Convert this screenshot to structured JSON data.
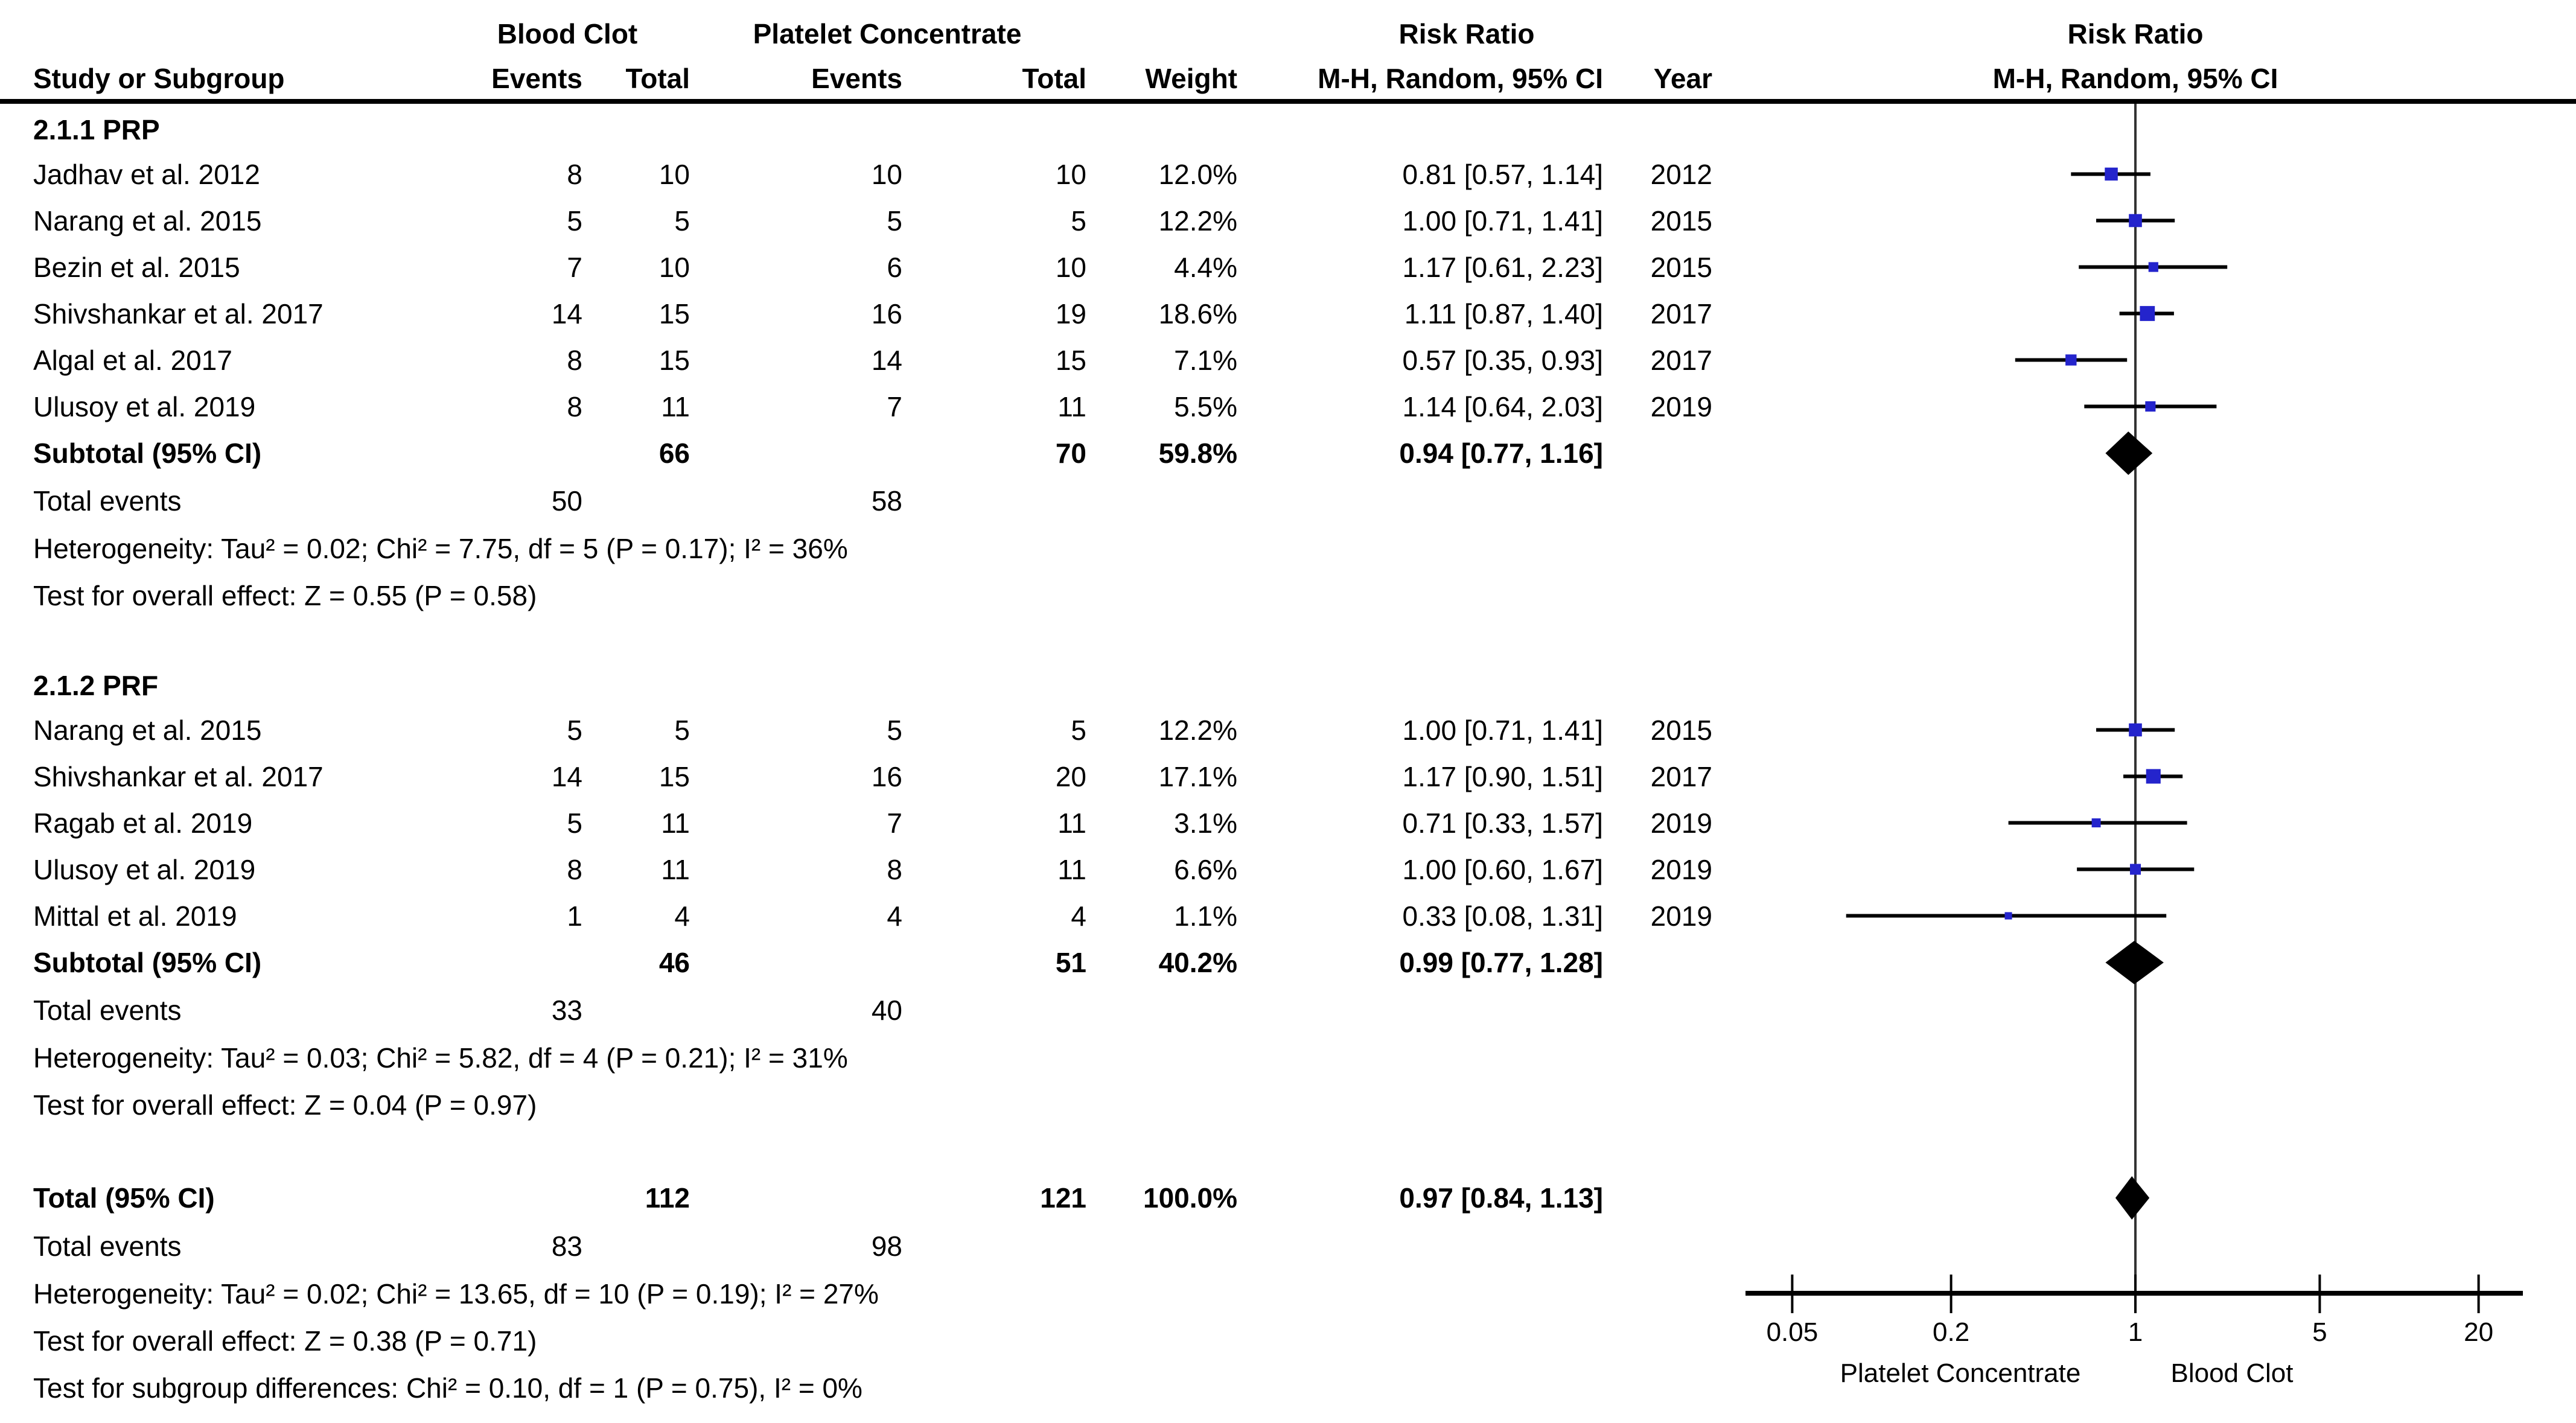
{
  "header": {
    "group1": "Blood Clot",
    "group2": "Platelet Concentrate",
    "risk_ratio": "Risk Ratio",
    "study": "Study or Subgroup",
    "events": "Events",
    "total": "Total",
    "weight": "Weight",
    "ci": "M-H, Random, 95% CI",
    "year": "Year"
  },
  "axis": {
    "ticks": [
      {
        "v": 0.05,
        "label": "0.05"
      },
      {
        "v": 0.2,
        "label": "0.2"
      },
      {
        "v": 1,
        "label": "1"
      },
      {
        "v": 5,
        "label": "5"
      },
      {
        "v": 20,
        "label": "20"
      }
    ],
    "favours_left": "Platelet Concentrate",
    "favours_right": "Blood Clot"
  },
  "colors": {
    "marker_blue": "#2424CC",
    "line_black": "#000000",
    "center_line": "#333333"
  },
  "rows": [
    {
      "type": "section",
      "label": "2.1.1 PRP"
    },
    {
      "type": "study",
      "study": "Jadhav et al. 2012",
      "e1": "8",
      "t1": "10",
      "e2": "10",
      "t2": "10",
      "weight": "12.0%",
      "ci": "0.81 [0.57, 1.14]",
      "year": "2012",
      "rr": 0.81,
      "lo": 0.57,
      "hi": 1.14,
      "w": 12.0
    },
    {
      "type": "study",
      "study": "Narang et al. 2015",
      "e1": "5",
      "t1": "5",
      "e2": "5",
      "t2": "5",
      "weight": "12.2%",
      "ci": "1.00 [0.71, 1.41]",
      "year": "2015",
      "rr": 1.0,
      "lo": 0.71,
      "hi": 1.41,
      "w": 12.2
    },
    {
      "type": "study",
      "study": "Bezin et al. 2015",
      "e1": "7",
      "t1": "10",
      "e2": "6",
      "t2": "10",
      "weight": "4.4%",
      "ci": "1.17 [0.61, 2.23]",
      "year": "2015",
      "rr": 1.17,
      "lo": 0.61,
      "hi": 2.23,
      "w": 4.4
    },
    {
      "type": "study",
      "study": "Shivshankar et al. 2017",
      "e1": "14",
      "t1": "15",
      "e2": "16",
      "t2": "19",
      "weight": "18.6%",
      "ci": "1.11 [0.87, 1.40]",
      "year": "2017",
      "rr": 1.11,
      "lo": 0.87,
      "hi": 1.4,
      "w": 18.6
    },
    {
      "type": "study",
      "study": "Algal et al. 2017",
      "e1": "8",
      "t1": "15",
      "e2": "14",
      "t2": "15",
      "weight": "7.1%",
      "ci": "0.57 [0.35, 0.93]",
      "year": "2017",
      "rr": 0.57,
      "lo": 0.35,
      "hi": 0.93,
      "w": 7.1
    },
    {
      "type": "study",
      "study": "Ulusoy et al. 2019",
      "e1": "8",
      "t1": "11",
      "e2": "7",
      "t2": "11",
      "weight": "5.5%",
      "ci": "1.14 [0.64, 2.03]",
      "year": "2019",
      "rr": 1.14,
      "lo": 0.64,
      "hi": 2.03,
      "w": 5.5
    },
    {
      "type": "subtotal",
      "label": "Subtotal (95% CI)",
      "t1": "66",
      "t2": "70",
      "weight": "59.8%",
      "ci": "0.94 [0.77, 1.16]",
      "rr": 0.94,
      "lo": 0.77,
      "hi": 1.16
    },
    {
      "type": "events",
      "label": "Total events",
      "e1": "50",
      "e2": "58"
    },
    {
      "type": "note",
      "label": "Heterogeneity: Tau² = 0.02; Chi² = 7.75, df = 5 (P = 0.17); I² = 36%"
    },
    {
      "type": "note",
      "label": "Test for overall effect: Z = 0.55 (P = 0.58)"
    },
    {
      "type": "gap"
    },
    {
      "type": "section",
      "label": "2.1.2 PRF"
    },
    {
      "type": "study",
      "study": "Narang et al. 2015",
      "e1": "5",
      "t1": "5",
      "e2": "5",
      "t2": "5",
      "weight": "12.2%",
      "ci": "1.00 [0.71, 1.41]",
      "year": "2015",
      "rr": 1.0,
      "lo": 0.71,
      "hi": 1.41,
      "w": 12.2
    },
    {
      "type": "study",
      "study": "Shivshankar et al. 2017",
      "e1": "14",
      "t1": "15",
      "e2": "16",
      "t2": "20",
      "weight": "17.1%",
      "ci": "1.17 [0.90, 1.51]",
      "year": "2017",
      "rr": 1.17,
      "lo": 0.9,
      "hi": 1.51,
      "w": 17.1
    },
    {
      "type": "study",
      "study": "Ragab et al. 2019",
      "e1": "5",
      "t1": "11",
      "e2": "7",
      "t2": "11",
      "weight": "3.1%",
      "ci": "0.71 [0.33, 1.57]",
      "year": "2019",
      "rr": 0.71,
      "lo": 0.33,
      "hi": 1.57,
      "w": 3.1
    },
    {
      "type": "study",
      "study": "Ulusoy et al. 2019",
      "e1": "8",
      "t1": "11",
      "e2": "8",
      "t2": "11",
      "weight": "6.6%",
      "ci": "1.00 [0.60, 1.67]",
      "year": "2019",
      "rr": 1.0,
      "lo": 0.6,
      "hi": 1.67,
      "w": 6.6
    },
    {
      "type": "study",
      "study": "Mittal et al. 2019",
      "e1": "1",
      "t1": "4",
      "e2": "4",
      "t2": "4",
      "weight": "1.1%",
      "ci": "0.33 [0.08, 1.31]",
      "year": "2019",
      "rr": 0.33,
      "lo": 0.08,
      "hi": 1.31,
      "w": 1.1
    },
    {
      "type": "subtotal",
      "label": "Subtotal (95% CI)",
      "t1": "46",
      "t2": "51",
      "weight": "40.2%",
      "ci": "0.99 [0.77, 1.28]",
      "rr": 0.99,
      "lo": 0.77,
      "hi": 1.28
    },
    {
      "type": "events",
      "label": "Total events",
      "e1": "33",
      "e2": "40"
    },
    {
      "type": "note",
      "label": "Heterogeneity: Tau² = 0.03; Chi² = 5.82, df = 4 (P = 0.21); I² = 31%"
    },
    {
      "type": "note",
      "label": "Test for overall effect: Z = 0.04 (P = 0.97)"
    },
    {
      "type": "gap"
    },
    {
      "type": "total",
      "label": "Total (95% CI)",
      "t1": "112",
      "t2": "121",
      "weight": "100.0%",
      "ci": "0.97 [0.84, 1.13]",
      "rr": 0.97,
      "lo": 0.84,
      "hi": 1.13
    },
    {
      "type": "events",
      "label": "Total events",
      "e1": "83",
      "e2": "98"
    },
    {
      "type": "note",
      "label": "Heterogeneity: Tau² = 0.02; Chi² = 13.65, df = 10 (P = 0.19); I² = 27%"
    },
    {
      "type": "note",
      "label": "Test for overall effect: Z = 0.38 (P = 0.71)"
    },
    {
      "type": "note",
      "label": "Test for subgroup differences: Chi² = 0.10, df = 1 (P = 0.75), I² = 0%"
    }
  ],
  "chart_data": {
    "type": "forest",
    "effect_measure": "Risk Ratio",
    "method": "M-H, Random, 95% CI",
    "group_labels": [
      "Blood Clot",
      "Platelet Concentrate"
    ],
    "x_scale": "log",
    "x_ticks": [
      0.05,
      0.2,
      1,
      5,
      20
    ],
    "xlim": [
      0.05,
      20
    ],
    "favours_left": "Platelet Concentrate",
    "favours_right": "Blood Clot",
    "subgroups": [
      {
        "name": "2.1.1 PRP",
        "studies": [
          {
            "study": "Jadhav et al. 2012",
            "events_blood_clot": 8,
            "total_blood_clot": 10,
            "events_platelet": 10,
            "total_platelet": 10,
            "weight_pct": 12.0,
            "rr": 0.81,
            "ci_low": 0.57,
            "ci_high": 1.14,
            "year": 2012
          },
          {
            "study": "Narang et al. 2015",
            "events_blood_clot": 5,
            "total_blood_clot": 5,
            "events_platelet": 5,
            "total_platelet": 5,
            "weight_pct": 12.2,
            "rr": 1.0,
            "ci_low": 0.71,
            "ci_high": 1.41,
            "year": 2015
          },
          {
            "study": "Bezin et al. 2015",
            "events_blood_clot": 7,
            "total_blood_clot": 10,
            "events_platelet": 6,
            "total_platelet": 10,
            "weight_pct": 4.4,
            "rr": 1.17,
            "ci_low": 0.61,
            "ci_high": 2.23,
            "year": 2015
          },
          {
            "study": "Shivshankar et al. 2017",
            "events_blood_clot": 14,
            "total_blood_clot": 15,
            "events_platelet": 16,
            "total_platelet": 19,
            "weight_pct": 18.6,
            "rr": 1.11,
            "ci_low": 0.87,
            "ci_high": 1.4,
            "year": 2017
          },
          {
            "study": "Algal et al. 2017",
            "events_blood_clot": 8,
            "total_blood_clot": 15,
            "events_platelet": 14,
            "total_platelet": 15,
            "weight_pct": 7.1,
            "rr": 0.57,
            "ci_low": 0.35,
            "ci_high": 0.93,
            "year": 2017
          },
          {
            "study": "Ulusoy et al. 2019",
            "events_blood_clot": 8,
            "total_blood_clot": 11,
            "events_platelet": 7,
            "total_platelet": 11,
            "weight_pct": 5.5,
            "rr": 1.14,
            "ci_low": 0.64,
            "ci_high": 2.03,
            "year": 2019
          }
        ],
        "subtotal": {
          "total_blood_clot": 66,
          "total_platelet": 70,
          "weight_pct": 59.8,
          "rr": 0.94,
          "ci_low": 0.77,
          "ci_high": 1.16
        },
        "total_events": {
          "blood_clot": 50,
          "platelet": 58
        },
        "heterogeneity": "Tau² = 0.02; Chi² = 7.75, df = 5 (P = 0.17); I² = 36%",
        "overall_effect": "Z = 0.55 (P = 0.58)"
      },
      {
        "name": "2.1.2 PRF",
        "studies": [
          {
            "study": "Narang et al. 2015",
            "events_blood_clot": 5,
            "total_blood_clot": 5,
            "events_platelet": 5,
            "total_platelet": 5,
            "weight_pct": 12.2,
            "rr": 1.0,
            "ci_low": 0.71,
            "ci_high": 1.41,
            "year": 2015
          },
          {
            "study": "Shivshankar et al. 2017",
            "events_blood_clot": 14,
            "total_blood_clot": 15,
            "events_platelet": 16,
            "total_platelet": 20,
            "weight_pct": 17.1,
            "rr": 1.17,
            "ci_low": 0.9,
            "ci_high": 1.51,
            "year": 2017
          },
          {
            "study": "Ragab et al. 2019",
            "events_blood_clot": 5,
            "total_blood_clot": 11,
            "events_platelet": 7,
            "total_platelet": 11,
            "weight_pct": 3.1,
            "rr": 0.71,
            "ci_low": 0.33,
            "ci_high": 1.57,
            "year": 2019
          },
          {
            "study": "Ulusoy et al. 2019",
            "events_blood_clot": 8,
            "total_blood_clot": 11,
            "events_platelet": 8,
            "total_platelet": 11,
            "weight_pct": 6.6,
            "rr": 1.0,
            "ci_low": 0.6,
            "ci_high": 1.67,
            "year": 2019
          },
          {
            "study": "Mittal et al. 2019",
            "events_blood_clot": 1,
            "total_blood_clot": 4,
            "events_platelet": 4,
            "total_platelet": 4,
            "weight_pct": 1.1,
            "rr": 0.33,
            "ci_low": 0.08,
            "ci_high": 1.31,
            "year": 2019
          }
        ],
        "subtotal": {
          "total_blood_clot": 46,
          "total_platelet": 51,
          "weight_pct": 40.2,
          "rr": 0.99,
          "ci_low": 0.77,
          "ci_high": 1.28
        },
        "total_events": {
          "blood_clot": 33,
          "platelet": 40
        },
        "heterogeneity": "Tau² = 0.03; Chi² = 5.82, df = 4 (P = 0.21); I² = 31%",
        "overall_effect": "Z = 0.04 (P = 0.97)"
      }
    ],
    "total": {
      "total_blood_clot": 112,
      "total_platelet": 121,
      "weight_pct": 100.0,
      "rr": 0.97,
      "ci_low": 0.84,
      "ci_high": 1.13,
      "total_events": {
        "blood_clot": 83,
        "platelet": 98
      },
      "heterogeneity": "Tau² = 0.02; Chi² = 13.65, df = 10 (P = 0.19); I² = 27%",
      "overall_effect": "Z = 0.38 (P = 0.71)",
      "subgroup_differences": "Chi² = 0.10, df = 1 (P = 0.75), I² = 0%"
    }
  }
}
